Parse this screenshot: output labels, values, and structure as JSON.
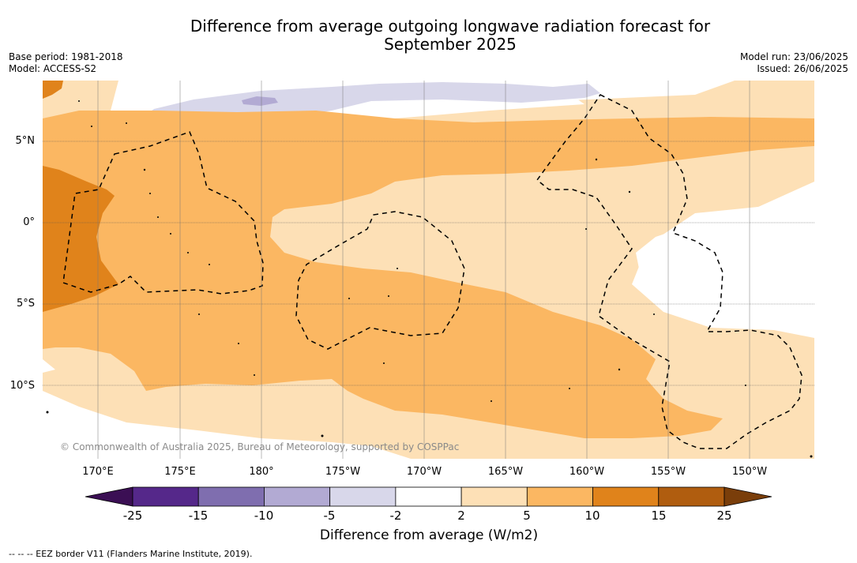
{
  "title_line1": "Difference from average outgoing longwave radiation forecast for",
  "title_line2": "September 2025",
  "base_period": "Base period: 1981-2018",
  "model": "Model: ACCESS-S2",
  "model_run": "Model run: 23/06/2025",
  "issued": "Issued: 26/06/2025",
  "lat_labels": [
    "5°N",
    "0°",
    "5°S",
    "10°S"
  ],
  "lon_labels": [
    "170°E",
    "175°E",
    "180°",
    "175°W",
    "170°W",
    "165°W",
    "160°W",
    "155°W",
    "150°W"
  ],
  "copyright": "© Commonwealth of Australia 2025, Bureau of Meteorology, supported by COSPPac",
  "colorbar": {
    "label": "Difference from average (W/m2)",
    "ticks": [
      "-25",
      "-15",
      "-10",
      "-5",
      "-2",
      "2",
      "5",
      "10",
      "15",
      "25"
    ],
    "colors": {
      "under": "#3b0f54",
      "bins": [
        "#55288a",
        "#7f6eaf",
        "#b2aad3",
        "#d8d7ea",
        "#ffffff",
        "#fde0b6",
        "#fbb762",
        "#e0831b",
        "#b05d0f"
      ],
      "over": "#7a3e0a"
    }
  },
  "footnote": "-- -- -- EEZ border V11 (Flanders Marine Institute, 2019)."
}
